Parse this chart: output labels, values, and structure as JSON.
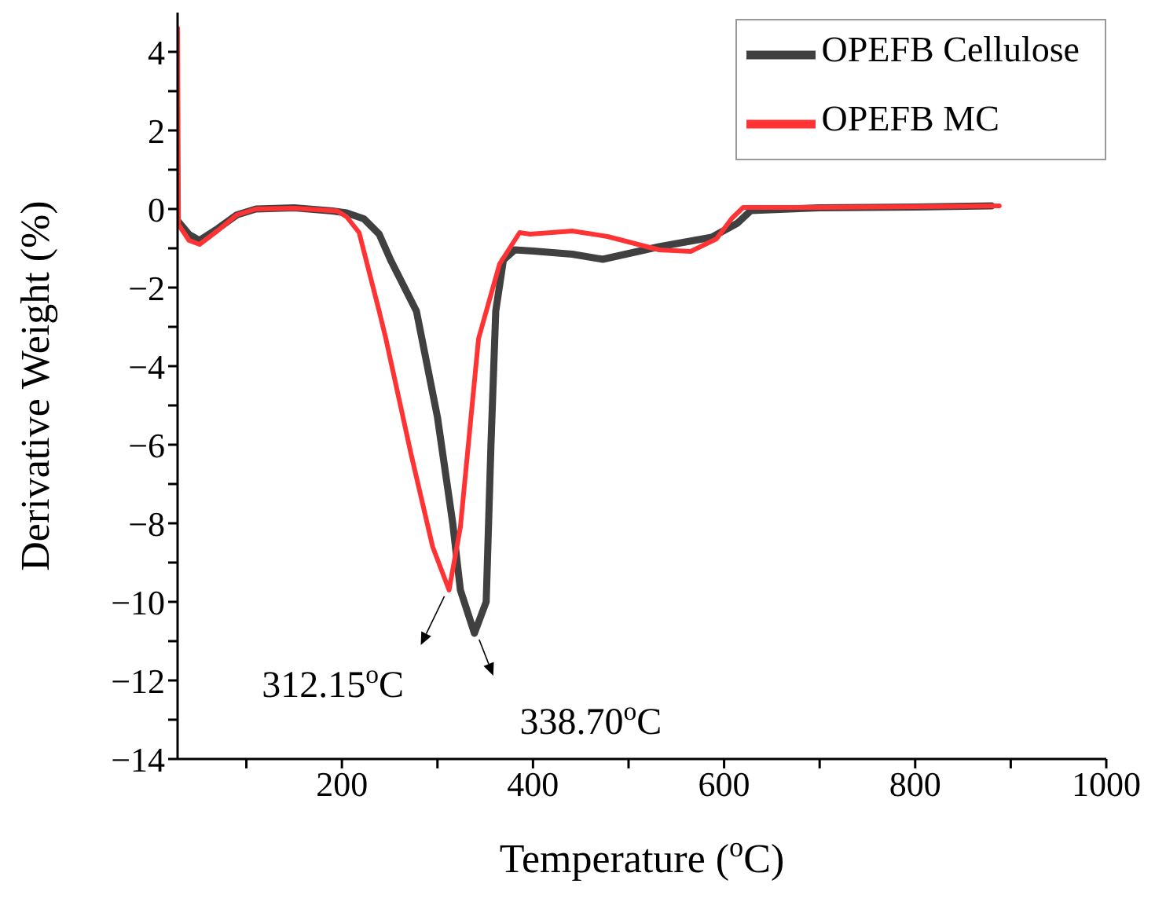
{
  "chart_data": {
    "type": "line",
    "xlabel": "Temperature ($^{o}$C)",
    "ylabel": "Derivative Weight (%)",
    "xlim": [
      28,
      1000
    ],
    "ylim": [
      -14,
      5
    ],
    "xticks": [
      {
        "value": 100,
        "label": null
      },
      200,
      {
        "value": 300,
        "label": null
      },
      400,
      {
        "value": 500,
        "label": null
      },
      600,
      {
        "value": 700,
        "label": null
      },
      800,
      {
        "value": 900,
        "label": null
      },
      1000
    ],
    "yticks": [
      {
        "value": -14,
        "label": "−14"
      },
      {
        "value": -13,
        "label": null
      },
      {
        "value": -12,
        "label": "−12"
      },
      {
        "value": -11,
        "label": null
      },
      {
        "value": -10,
        "label": "−10"
      },
      {
        "value": -9,
        "label": null
      },
      {
        "value": -8,
        "label": "−8"
      },
      {
        "value": -7,
        "label": null
      },
      {
        "value": -6,
        "label": "−6"
      },
      {
        "value": -5,
        "label": null
      },
      {
        "value": -4,
        "label": "−4"
      },
      {
        "value": -3,
        "label": null
      },
      {
        "value": -2,
        "label": "−2"
      },
      {
        "value": -1,
        "label": null
      },
      0,
      {
        "value": 1,
        "label": null
      },
      2,
      {
        "value": 3,
        "label": null
      },
      4
    ],
    "grid": false,
    "legend": "top right",
    "marker": "none",
    "line_style": "solid",
    "annotations": [
      {
        "text": "312.15$^{o}$C",
        "x": 312.15,
        "y": -9.7
      },
      {
        "text": "338.70$^{o}$C",
        "x": 338.7,
        "y": -10.8
      }
    ],
    "series": [
      {
        "name": "OPEFB Cellulose",
        "color": "#404040",
        "x": [
          28,
          40,
          51,
          70,
          90,
          110,
          150,
          190,
          205,
          223,
          239,
          251,
          278,
          300,
          316,
          324,
          338.7,
          351,
          356,
          361,
          369,
          381,
          400,
          441,
          473,
          532,
          587,
          614,
          628,
          700,
          800,
          880
        ],
        "values": [
          -0.3,
          -0.65,
          -0.8,
          -0.5,
          -0.15,
          0,
          0.03,
          -0.05,
          -0.1,
          -0.25,
          -0.64,
          -1.3,
          -2.6,
          -5.3,
          -8,
          -9.7,
          -10.8,
          -10,
          -6,
          -2.6,
          -1.3,
          -1.04,
          -1.07,
          -1.15,
          -1.28,
          -0.96,
          -0.72,
          -0.36,
          -0.04,
          0.03,
          0.05,
          0.08
        ]
      },
      {
        "name": "OPEFB MC",
        "color": "#ff3333",
        "x": [
          28,
          29,
          40,
          51,
          70,
          90,
          110,
          150,
          195,
          205,
          218,
          239,
          246,
          272,
          295,
          312.15,
          324,
          343,
          365,
          386,
          397,
          441,
          478,
          532,
          565,
          592,
          608,
          620,
          700,
          800,
          888
        ],
        "values": [
          4.6,
          -0.4,
          -0.8,
          -0.9,
          -0.55,
          -0.15,
          0,
          0.02,
          -0.05,
          -0.2,
          -0.6,
          -2.6,
          -3.3,
          -6.2,
          -8.6,
          -9.7,
          -8.1,
          -3.3,
          -1.4,
          -0.6,
          -0.64,
          -0.56,
          -0.7,
          -1.04,
          -1.08,
          -0.76,
          -0.24,
          0.04,
          0.04,
          0.06,
          0.08
        ]
      }
    ]
  }
}
